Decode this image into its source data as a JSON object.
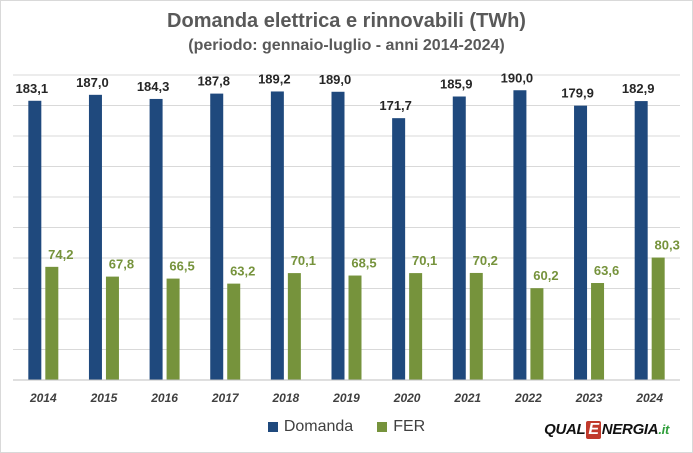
{
  "chart_data": {
    "type": "bar",
    "title": "Domanda elettrica e rinnovabili (TWh)",
    "subtitle": "(periodo: gennaio-luglio - anni 2014-2024)",
    "categories": [
      "2014",
      "2015",
      "2016",
      "2017",
      "2018",
      "2019",
      "2020",
      "2021",
      "2022",
      "2023",
      "2024"
    ],
    "series": [
      {
        "name": "Domanda",
        "color": "#1f497d",
        "values": [
          183.1,
          187.0,
          184.3,
          187.8,
          189.2,
          189.0,
          171.7,
          185.9,
          190.0,
          179.9,
          182.9
        ],
        "labels": [
          "183,1",
          "187,0",
          "184,3",
          "187,8",
          "189,2",
          "189,0",
          "171,7",
          "185,9",
          "190,0",
          "179,9",
          "182,9"
        ],
        "label_color": "#262626"
      },
      {
        "name": "FER",
        "color": "#76933c",
        "values": [
          74.2,
          67.8,
          66.5,
          63.2,
          70.1,
          68.5,
          70.1,
          70.2,
          60.2,
          63.6,
          80.3
        ],
        "labels": [
          "74,2",
          "67,8",
          "66,5",
          "63,2",
          "70,1",
          "68,5",
          "70,1",
          "70,2",
          "60,2",
          "63,6",
          "80,3"
        ],
        "label_color": "#76933c"
      }
    ],
    "ylim": [
      0,
      200
    ],
    "grid": true,
    "legend_position": "bottom"
  },
  "brand": {
    "prefix": "QUAL",
    "letter": "E",
    "rest": "NERGIA",
    "suffix": ".it"
  }
}
